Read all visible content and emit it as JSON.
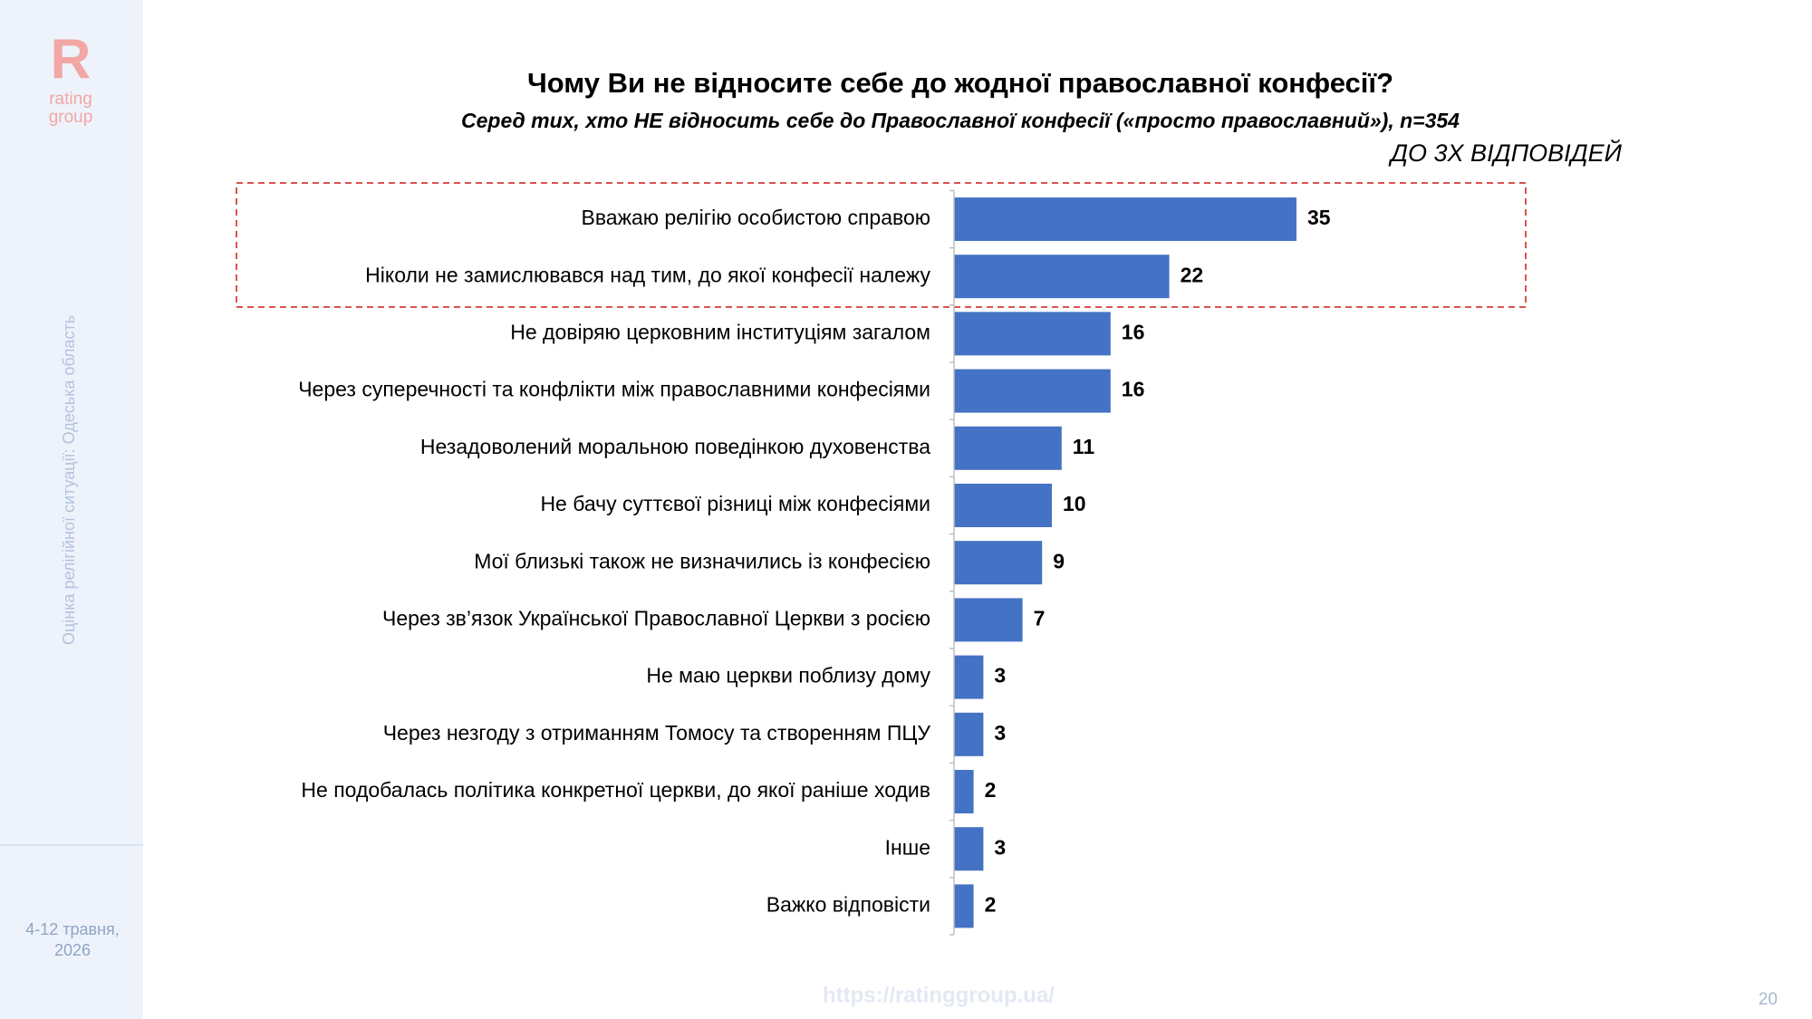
{
  "chart_data": {
    "type": "bar",
    "orientation": "horizontal",
    "title": "Чому Ви не відносите себе до жодної православної конфесії?",
    "subtitle": "Серед тих, хто НЕ відносить себе до Православної конфесії («просто православний»), n=354",
    "note": "ДО 3Х ВІДПОВІДЕЙ",
    "categories": [
      "Вважаю релігію особистою справою",
      "Ніколи не замислювався над тим, до якої конфесії належу",
      "Не довіряю церковним інституціям загалом",
      "Через суперечності та конфлікти між православними конфесіями",
      "Незадоволений моральною поведінкою духовенства",
      "Не бачу суттєвої різниці між конфесіями",
      "Мої близькі також не визначились із конфесією",
      "Через зв’язок Української Православної Церкви з росією",
      "Не маю церкви поблизу дому",
      "Через незгоду з отриманням Томосу та створенням ПЦУ",
      "Не подобалась політика конкретної церкви, до якої раніше ходив",
      "Інше",
      "Важко відповісти"
    ],
    "values": [
      35,
      22,
      16,
      16,
      11,
      10,
      9,
      7,
      3,
      3,
      2,
      3,
      2
    ],
    "color": "#4472c4"
  },
  "sidebar": {
    "logo": "R",
    "logo_lines": [
      "rating",
      "group"
    ],
    "vertical_text": "Оцінка релігійної ситуації: Одеська область",
    "date_lines": [
      "4-12 травня,",
      "2026"
    ]
  },
  "footer": {
    "url": "https://ratinggroup.ua/",
    "page": "20"
  }
}
